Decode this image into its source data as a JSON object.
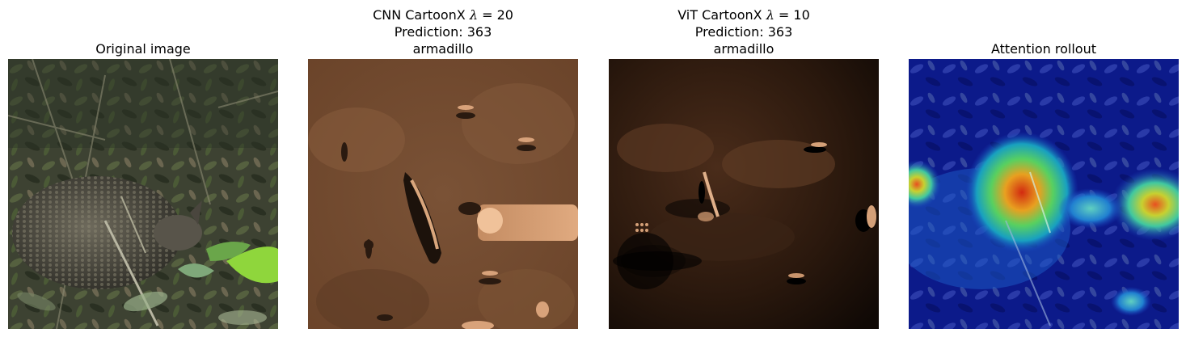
{
  "panels": [
    {
      "title_lines": [
        "Original image"
      ]
    },
    {
      "title_prefix": "CNN CartoonX ",
      "lambda_symbol": "λ",
      "lambda_rest": " = 20",
      "title_lines": [
        "Prediction: 363",
        "armadillo"
      ]
    },
    {
      "title_prefix": "ViT CartoonX ",
      "lambda_symbol": "λ",
      "lambda_rest": " = 10",
      "title_lines": [
        "Prediction: 363",
        "armadillo"
      ]
    },
    {
      "title_lines": [
        "Attention rollout"
      ]
    }
  ]
}
